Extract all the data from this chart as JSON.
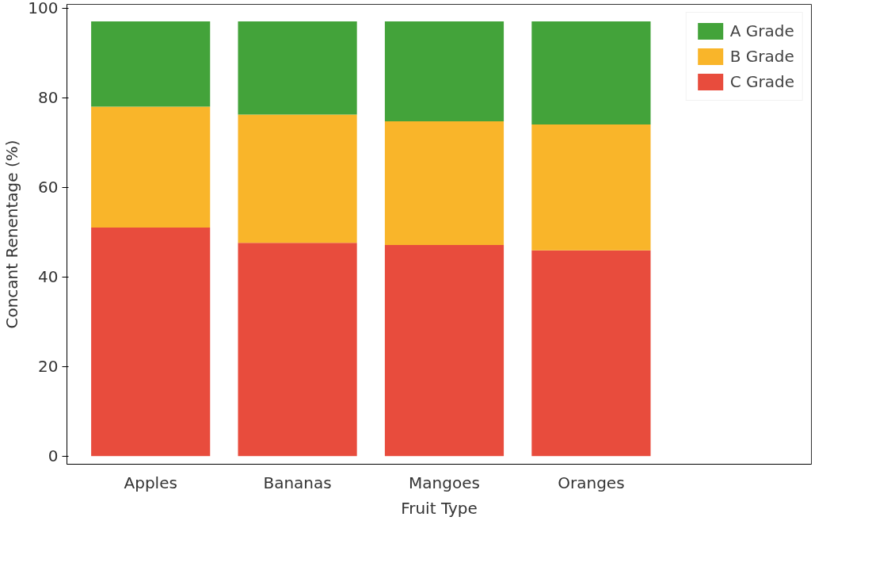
{
  "chart_data": {
    "type": "bar",
    "stacked": true,
    "xlabel": "Fruit Type",
    "ylabel": "Concant Renentage (%)",
    "categories": [
      "Apples",
      "Bananas",
      "Mangoes",
      "Oranges"
    ],
    "series": [
      {
        "name": "C Grade",
        "color": "#e84c3d",
        "values": [
          51,
          47.6,
          47.1,
          45.9
        ]
      },
      {
        "name": "B Grade",
        "color": "#f9b52a",
        "values": [
          27,
          28.6,
          27.6,
          28.1
        ]
      },
      {
        "name": "A Grade",
        "color": "#43a33a",
        "values": [
          19,
          20.8,
          22.3,
          23
        ]
      }
    ],
    "ylim": [
      -1.8,
      100.8
    ],
    "yticks": [
      0,
      20,
      40,
      60,
      80,
      100
    ],
    "grid": false,
    "legend": "top right"
  }
}
